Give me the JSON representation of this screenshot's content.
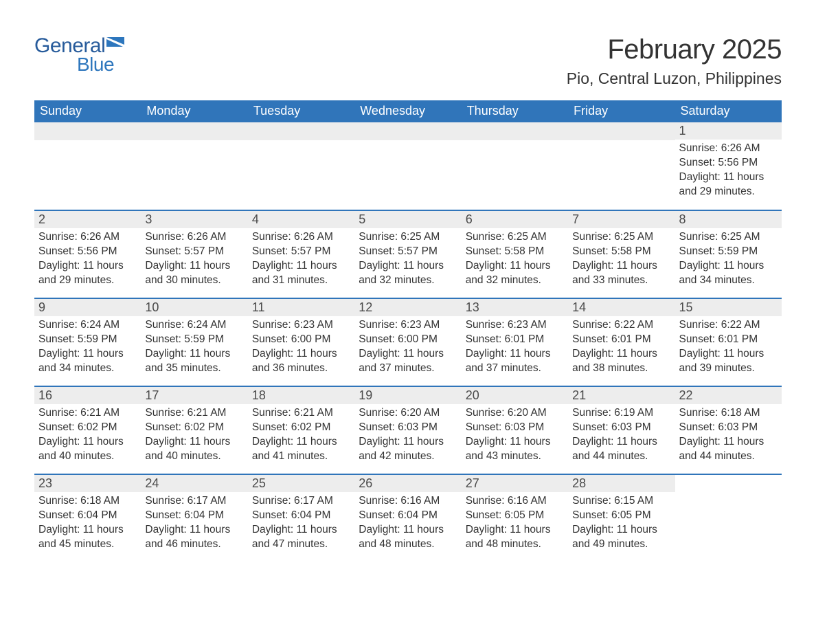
{
  "brand": {
    "word1": "General",
    "word2": "Blue",
    "color1": "#275b9b",
    "color2": "#2d76bd",
    "flag_color": "#2d76bd"
  },
  "header": {
    "month_title": "February 2025",
    "location": "Pio, Central Luzon, Philippines"
  },
  "calendar": {
    "type": "table",
    "columns": [
      "Sunday",
      "Monday",
      "Tuesday",
      "Wednesday",
      "Thursday",
      "Friday",
      "Saturday"
    ],
    "header_bg": "#3075ba",
    "header_text_color": "#ffffff",
    "row_divider_color": "#3075ba",
    "daynum_bg": "#ededed",
    "daynum_color": "#4a4a4a",
    "body_text_color": "#333333",
    "background_color": "#ffffff",
    "header_fontsize": 18,
    "daynum_fontsize": 18,
    "data_fontsize": 15.5,
    "weeks": [
      [
        null,
        null,
        null,
        null,
        null,
        null,
        {
          "day": "1",
          "sunrise": "Sunrise: 6:26 AM",
          "sunset": "Sunset: 5:56 PM",
          "daylight": "Daylight: 11 hours and 29 minutes."
        }
      ],
      [
        {
          "day": "2",
          "sunrise": "Sunrise: 6:26 AM",
          "sunset": "Sunset: 5:56 PM",
          "daylight": "Daylight: 11 hours and 29 minutes."
        },
        {
          "day": "3",
          "sunrise": "Sunrise: 6:26 AM",
          "sunset": "Sunset: 5:57 PM",
          "daylight": "Daylight: 11 hours and 30 minutes."
        },
        {
          "day": "4",
          "sunrise": "Sunrise: 6:26 AM",
          "sunset": "Sunset: 5:57 PM",
          "daylight": "Daylight: 11 hours and 31 minutes."
        },
        {
          "day": "5",
          "sunrise": "Sunrise: 6:25 AM",
          "sunset": "Sunset: 5:57 PM",
          "daylight": "Daylight: 11 hours and 32 minutes."
        },
        {
          "day": "6",
          "sunrise": "Sunrise: 6:25 AM",
          "sunset": "Sunset: 5:58 PM",
          "daylight": "Daylight: 11 hours and 32 minutes."
        },
        {
          "day": "7",
          "sunrise": "Sunrise: 6:25 AM",
          "sunset": "Sunset: 5:58 PM",
          "daylight": "Daylight: 11 hours and 33 minutes."
        },
        {
          "day": "8",
          "sunrise": "Sunrise: 6:25 AM",
          "sunset": "Sunset: 5:59 PM",
          "daylight": "Daylight: 11 hours and 34 minutes."
        }
      ],
      [
        {
          "day": "9",
          "sunrise": "Sunrise: 6:24 AM",
          "sunset": "Sunset: 5:59 PM",
          "daylight": "Daylight: 11 hours and 34 minutes."
        },
        {
          "day": "10",
          "sunrise": "Sunrise: 6:24 AM",
          "sunset": "Sunset: 5:59 PM",
          "daylight": "Daylight: 11 hours and 35 minutes."
        },
        {
          "day": "11",
          "sunrise": "Sunrise: 6:23 AM",
          "sunset": "Sunset: 6:00 PM",
          "daylight": "Daylight: 11 hours and 36 minutes."
        },
        {
          "day": "12",
          "sunrise": "Sunrise: 6:23 AM",
          "sunset": "Sunset: 6:00 PM",
          "daylight": "Daylight: 11 hours and 37 minutes."
        },
        {
          "day": "13",
          "sunrise": "Sunrise: 6:23 AM",
          "sunset": "Sunset: 6:01 PM",
          "daylight": "Daylight: 11 hours and 37 minutes."
        },
        {
          "day": "14",
          "sunrise": "Sunrise: 6:22 AM",
          "sunset": "Sunset: 6:01 PM",
          "daylight": "Daylight: 11 hours and 38 minutes."
        },
        {
          "day": "15",
          "sunrise": "Sunrise: 6:22 AM",
          "sunset": "Sunset: 6:01 PM",
          "daylight": "Daylight: 11 hours and 39 minutes."
        }
      ],
      [
        {
          "day": "16",
          "sunrise": "Sunrise: 6:21 AM",
          "sunset": "Sunset: 6:02 PM",
          "daylight": "Daylight: 11 hours and 40 minutes."
        },
        {
          "day": "17",
          "sunrise": "Sunrise: 6:21 AM",
          "sunset": "Sunset: 6:02 PM",
          "daylight": "Daylight: 11 hours and 40 minutes."
        },
        {
          "day": "18",
          "sunrise": "Sunrise: 6:21 AM",
          "sunset": "Sunset: 6:02 PM",
          "daylight": "Daylight: 11 hours and 41 minutes."
        },
        {
          "day": "19",
          "sunrise": "Sunrise: 6:20 AM",
          "sunset": "Sunset: 6:03 PM",
          "daylight": "Daylight: 11 hours and 42 minutes."
        },
        {
          "day": "20",
          "sunrise": "Sunrise: 6:20 AM",
          "sunset": "Sunset: 6:03 PM",
          "daylight": "Daylight: 11 hours and 43 minutes."
        },
        {
          "day": "21",
          "sunrise": "Sunrise: 6:19 AM",
          "sunset": "Sunset: 6:03 PM",
          "daylight": "Daylight: 11 hours and 44 minutes."
        },
        {
          "day": "22",
          "sunrise": "Sunrise: 6:18 AM",
          "sunset": "Sunset: 6:03 PM",
          "daylight": "Daylight: 11 hours and 44 minutes."
        }
      ],
      [
        {
          "day": "23",
          "sunrise": "Sunrise: 6:18 AM",
          "sunset": "Sunset: 6:04 PM",
          "daylight": "Daylight: 11 hours and 45 minutes."
        },
        {
          "day": "24",
          "sunrise": "Sunrise: 6:17 AM",
          "sunset": "Sunset: 6:04 PM",
          "daylight": "Daylight: 11 hours and 46 minutes."
        },
        {
          "day": "25",
          "sunrise": "Sunrise: 6:17 AM",
          "sunset": "Sunset: 6:04 PM",
          "daylight": "Daylight: 11 hours and 47 minutes."
        },
        {
          "day": "26",
          "sunrise": "Sunrise: 6:16 AM",
          "sunset": "Sunset: 6:04 PM",
          "daylight": "Daylight: 11 hours and 48 minutes."
        },
        {
          "day": "27",
          "sunrise": "Sunrise: 6:16 AM",
          "sunset": "Sunset: 6:05 PM",
          "daylight": "Daylight: 11 hours and 48 minutes."
        },
        {
          "day": "28",
          "sunrise": "Sunrise: 6:15 AM",
          "sunset": "Sunset: 6:05 PM",
          "daylight": "Daylight: 11 hours and 49 minutes."
        },
        null
      ]
    ]
  }
}
